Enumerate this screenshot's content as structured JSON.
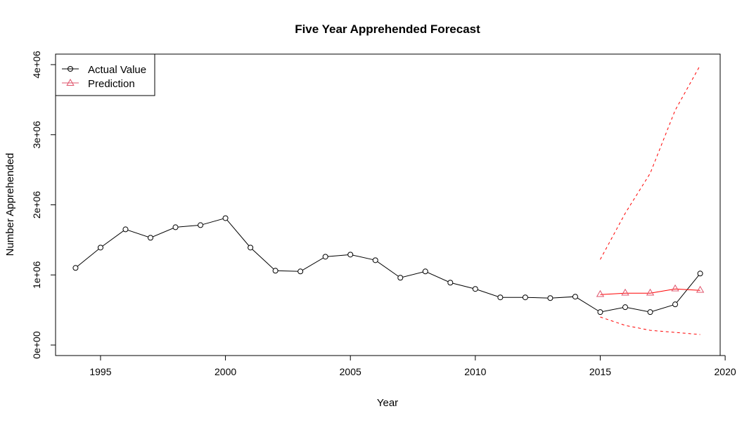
{
  "chart_data": {
    "type": "line",
    "title": "Five Year Apprehended Forecast",
    "xlabel": "Year",
    "ylabel": "Number Apprehended",
    "xlim": [
      1993.2,
      2019.8
    ],
    "ylim": [
      -150000,
      4150000
    ],
    "x_ticks": [
      1995,
      2000,
      2005,
      2010,
      2015,
      2020
    ],
    "x_tick_labels": [
      "1995",
      "2000",
      "2005",
      "2010",
      "2015",
      "2020"
    ],
    "y_ticks": [
      0,
      1000000,
      2000000,
      3000000,
      4000000
    ],
    "y_tick_labels": [
      "0e+00",
      "1e+06",
      "2e+06",
      "3e+06",
      "4e+06"
    ],
    "grid": false,
    "legend_position": "top-left",
    "series": [
      {
        "name": "Actual Value",
        "color": "#000000",
        "marker": "circle",
        "x": [
          1994,
          1995,
          1996,
          1997,
          1998,
          1999,
          2000,
          2001,
          2002,
          2003,
          2004,
          2005,
          2006,
          2007,
          2008,
          2009,
          2010,
          2011,
          2012,
          2013,
          2014,
          2015,
          2016,
          2017,
          2018,
          2019
        ],
        "values": [
          1100000,
          1390000,
          1650000,
          1530000,
          1680000,
          1710000,
          1810000,
          1390000,
          1060000,
          1050000,
          1260000,
          1290000,
          1210000,
          960000,
          1050000,
          890000,
          800000,
          680000,
          680000,
          670000,
          690000,
          470000,
          540000,
          470000,
          580000,
          1020000
        ]
      },
      {
        "name": "Prediction",
        "color": "#DF536B",
        "line_color": "#ff0000",
        "marker": "triangle",
        "x": [
          2015,
          2016,
          2017,
          2018,
          2019
        ],
        "values": [
          720000,
          740000,
          740000,
          800000,
          780000
        ]
      }
    ],
    "interval_lines": [
      {
        "color": "#ff0000",
        "style": "dashed",
        "x": [
          2015,
          2016,
          2017,
          2018,
          2019
        ],
        "values": [
          1220000,
          1880000,
          2450000,
          3350000,
          3990000
        ]
      },
      {
        "color": "#ff0000",
        "style": "dashed",
        "x": [
          2015,
          2016,
          2017,
          2018,
          2019
        ],
        "values": [
          400000,
          280000,
          210000,
          180000,
          150000
        ]
      }
    ]
  }
}
